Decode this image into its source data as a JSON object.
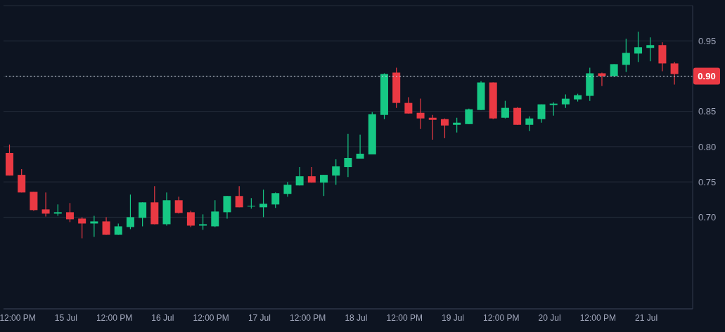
{
  "chart_data": {
    "type": "candlestick",
    "x": [
      "--07-14T10:00:00",
      "--07-14T13:00:00",
      "--07-14T16:00:00",
      "--07-14T19:00:00",
      "--07-14T22:00:00",
      "--07-15T01:00:00",
      "--07-15T04:00:00",
      "--07-15T07:00:00",
      "--07-15T10:00:00",
      "--07-15T13:00:00",
      "--07-15T16:00:00",
      "--07-15T19:00:00",
      "--07-15T22:00:00",
      "--07-16T01:00:00",
      "--07-16T04:00:00",
      "--07-16T07:00:00",
      "--07-16T10:00:00",
      "--07-16T13:00:00",
      "--07-16T16:00:00",
      "--07-16T19:00:00",
      "--07-16T22:00:00",
      "--07-17T01:00:00",
      "--07-17T04:00:00",
      "--07-17T07:00:00",
      "--07-17T10:00:00",
      "--07-17T13:00:00",
      "--07-17T16:00:00",
      "--07-17T19:00:00",
      "--07-17T22:00:00",
      "--07-18T01:00:00",
      "--07-18T04:00:00",
      "--07-18T07:00:00",
      "--07-18T10:00:00",
      "--07-18T13:00:00",
      "--07-18T16:00:00",
      "--07-18T19:00:00",
      "--07-18T22:00:00",
      "--07-19T01:00:00",
      "--07-19T04:00:00",
      "--07-19T07:00:00",
      "--07-19T10:00:00",
      "--07-19T13:00:00",
      "--07-19T16:00:00",
      "--07-19T19:00:00",
      "--07-19T22:00:00",
      "--07-20T01:00:00",
      "--07-20T04:00:00",
      "--07-20T07:00:00",
      "--07-20T10:00:00",
      "--07-20T13:00:00",
      "--07-20T16:00:00",
      "--07-20T19:00:00",
      "--07-20T22:00:00",
      "--07-21T01:00:00",
      "--07-21T04:00:00",
      "--07-21T07:00:00"
    ],
    "ohlc": [
      [
        0.791,
        0.803,
        0.759,
        0.759
      ],
      [
        0.76,
        0.768,
        0.735,
        0.735
      ],
      [
        0.736,
        0.736,
        0.709,
        0.71
      ],
      [
        0.711,
        0.735,
        0.701,
        0.705
      ],
      [
        0.705,
        0.718,
        0.702,
        0.707
      ],
      [
        0.707,
        0.72,
        0.693,
        0.697
      ],
      [
        0.698,
        0.7,
        0.67,
        0.691
      ],
      [
        0.691,
        0.702,
        0.672,
        0.694
      ],
      [
        0.694,
        0.7,
        0.675,
        0.675
      ],
      [
        0.675,
        0.691,
        0.675,
        0.687
      ],
      [
        0.686,
        0.732,
        0.683,
        0.7
      ],
      [
        0.699,
        0.721,
        0.687,
        0.721
      ],
      [
        0.721,
        0.744,
        0.69,
        0.69
      ],
      [
        0.69,
        0.735,
        0.688,
        0.724
      ],
      [
        0.724,
        0.729,
        0.705,
        0.706
      ],
      [
        0.707,
        0.709,
        0.686,
        0.688
      ],
      [
        0.688,
        0.704,
        0.682,
        0.69
      ],
      [
        0.687,
        0.724,
        0.686,
        0.708
      ],
      [
        0.707,
        0.73,
        0.698,
        0.73
      ],
      [
        0.73,
        0.744,
        0.714,
        0.714
      ],
      [
        0.715,
        0.727,
        0.712,
        0.716
      ],
      [
        0.714,
        0.739,
        0.7,
        0.719
      ],
      [
        0.718,
        0.735,
        0.713,
        0.734
      ],
      [
        0.733,
        0.75,
        0.729,
        0.746
      ],
      [
        0.745,
        0.771,
        0.745,
        0.758
      ],
      [
        0.758,
        0.771,
        0.749,
        0.749
      ],
      [
        0.749,
        0.76,
        0.73,
        0.76
      ],
      [
        0.759,
        0.782,
        0.746,
        0.772
      ],
      [
        0.771,
        0.818,
        0.757,
        0.784
      ],
      [
        0.783,
        0.817,
        0.783,
        0.79
      ],
      [
        0.789,
        0.849,
        0.789,
        0.846
      ],
      [
        0.845,
        0.904,
        0.839,
        0.903
      ],
      [
        0.905,
        0.912,
        0.855,
        0.862
      ],
      [
        0.862,
        0.87,
        0.847,
        0.847
      ],
      [
        0.848,
        0.868,
        0.825,
        0.84
      ],
      [
        0.841,
        0.845,
        0.81,
        0.838
      ],
      [
        0.839,
        0.84,
        0.812,
        0.83
      ],
      [
        0.831,
        0.841,
        0.82,
        0.834
      ],
      [
        0.832,
        0.854,
        0.832,
        0.853
      ],
      [
        0.852,
        0.893,
        0.852,
        0.891
      ],
      [
        0.891,
        0.891,
        0.839,
        0.84
      ],
      [
        0.841,
        0.865,
        0.84,
        0.855
      ],
      [
        0.855,
        0.856,
        0.831,
        0.831
      ],
      [
        0.831,
        0.843,
        0.822,
        0.84
      ],
      [
        0.839,
        0.86,
        0.834,
        0.86
      ],
      [
        0.859,
        0.863,
        0.844,
        0.861
      ],
      [
        0.86,
        0.874,
        0.855,
        0.868
      ],
      [
        0.867,
        0.875,
        0.864,
        0.873
      ],
      [
        0.872,
        0.912,
        0.865,
        0.904
      ],
      [
        0.904,
        0.905,
        0.886,
        0.9
      ],
      [
        0.9,
        0.917,
        0.899,
        0.917
      ],
      [
        0.916,
        0.953,
        0.906,
        0.933
      ],
      [
        0.932,
        0.963,
        0.92,
        0.941
      ],
      [
        0.94,
        0.955,
        0.921,
        0.944
      ],
      [
        0.944,
        0.948,
        0.907,
        0.918
      ],
      [
        0.918,
        0.92,
        0.888,
        0.903
      ]
    ],
    "colors": [
      "#ea3943",
      "#ea3943",
      "#ea3943",
      "#ea3943",
      "#16c784",
      "#ea3943",
      "#ea3943",
      "#16c784",
      "#ea3943",
      "#16c784",
      "#16c784",
      "#16c784",
      "#ea3943",
      "#16c784",
      "#ea3943",
      "#ea3943",
      "#16c784",
      "#16c784",
      "#16c784",
      "#ea3943",
      "#16c784",
      "#16c784",
      "#16c784",
      "#16c784",
      "#16c784",
      "#ea3943",
      "#16c784",
      "#16c784",
      "#16c784",
      "#16c784",
      "#16c784",
      "#16c784",
      "#ea3943",
      "#ea3943",
      "#ea3943",
      "#ea3943",
      "#ea3943",
      "#16c784",
      "#16c784",
      "#16c784",
      "#ea3943",
      "#16c784",
      "#ea3943",
      "#16c784",
      "#16c784",
      "#16c784",
      "#16c784",
      "#16c784",
      "#16c784",
      "#ea3943",
      "#16c784",
      "#16c784",
      "#16c784",
      "#16c784",
      "#ea3943",
      "#ea3943"
    ],
    "xlim": [
      "--07-14T08:30:00",
      "--07-21T11:30:00"
    ],
    "xticks": [
      {
        "value": "--07-14T12:00:00",
        "label": "12:00 PM"
      },
      {
        "value": "--07-15",
        "label": "15 Jul"
      },
      {
        "value": "--07-15T12:00:00",
        "label": "12:00 PM"
      },
      {
        "value": "--07-16",
        "label": "16 Jul"
      },
      {
        "value": "--07-16T12:00:00",
        "label": "12:00 PM"
      },
      {
        "value": "--07-17",
        "label": "17 Jul"
      },
      {
        "value": "--07-17T12:00:00",
        "label": "12:00 PM"
      },
      {
        "value": "--07-18",
        "label": "18 Jul"
      },
      {
        "value": "--07-18T12:00:00",
        "label": "12:00 PM"
      },
      {
        "value": "--07-19",
        "label": "19 Jul"
      },
      {
        "value": "--07-19T12:00:00",
        "label": "12:00 PM"
      },
      {
        "value": "--07-20",
        "label": "20 Jul"
      },
      {
        "value": "--07-20T12:00:00",
        "label": "12:00 PM"
      },
      {
        "value": "--07-21",
        "label": "21 Jul"
      }
    ],
    "ylim": [
      0.57,
      1.0
    ],
    "yticks": [
      {
        "value": 0.7,
        "label": "0.70"
      },
      {
        "value": 0.75,
        "label": "0.75"
      },
      {
        "value": 0.8,
        "label": "0.80"
      },
      {
        "value": 0.85,
        "label": "0.85"
      },
      {
        "value": 0.9,
        "label": null
      },
      {
        "value": 0.95,
        "label": "0.95"
      }
    ],
    "ref_lines": [
      {
        "axis": "y",
        "value": 0.9,
        "label": "0.90",
        "color": "#cfd6e4",
        "line_style": "dotted"
      }
    ],
    "grid": "y"
  }
}
